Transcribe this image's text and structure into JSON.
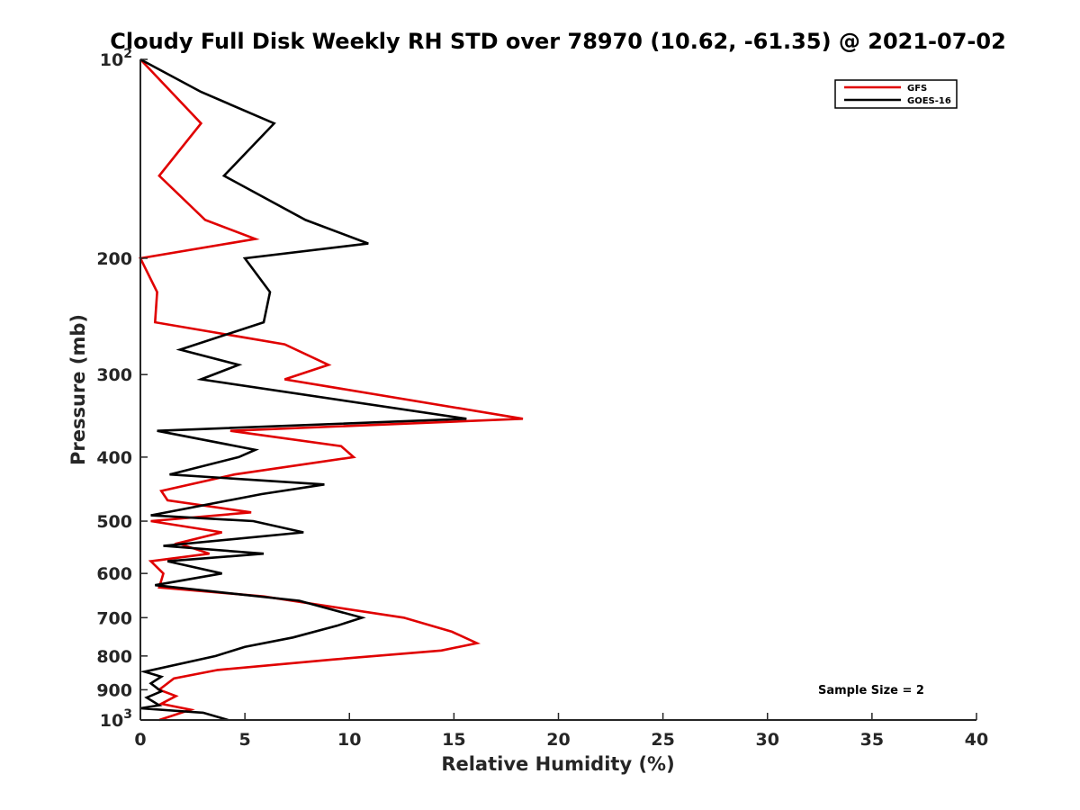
{
  "chart_data": {
    "type": "line",
    "title": "Cloudy Full Disk Weekly RH STD over 78970 (10.62, -61.35) @ 2021-07-02",
    "xlabel": "Relative Humidity (%)",
    "ylabel": "Pressure (mb)",
    "xlim": [
      0,
      40
    ],
    "ylim": [
      1000,
      100
    ],
    "yscale": "log",
    "y_reversed": true,
    "grid": false,
    "legend_position": "top-right",
    "x_ticks": [
      0,
      5,
      10,
      15,
      20,
      25,
      30,
      35,
      40
    ],
    "y_ticks": [
      {
        "value": 100,
        "base": "10",
        "exp": "2"
      },
      {
        "value": 200,
        "label": "200"
      },
      {
        "value": 300,
        "label": "300"
      },
      {
        "value": 400,
        "label": "400"
      },
      {
        "value": 500,
        "label": "500"
      },
      {
        "value": 600,
        "label": "600"
      },
      {
        "value": 700,
        "label": "700"
      },
      {
        "value": 800,
        "label": "800"
      },
      {
        "value": 900,
        "label": "900"
      },
      {
        "value": 1000,
        "base": "10",
        "exp": "3"
      }
    ],
    "series": [
      {
        "name": "GFS",
        "color": "#e00000",
        "points": [
          [
            0.0,
            100
          ],
          [
            2.9,
            125
          ],
          [
            0.9,
            150
          ],
          [
            3.1,
            175
          ],
          [
            5.5,
            187
          ],
          [
            0.0,
            200
          ],
          [
            0.8,
            225
          ],
          [
            0.7,
            250
          ],
          [
            6.9,
            270
          ],
          [
            9.0,
            290
          ],
          [
            6.9,
            305
          ],
          [
            18.3,
            350
          ],
          [
            4.3,
            365
          ],
          [
            9.6,
            385
          ],
          [
            10.2,
            400
          ],
          [
            4.5,
            425
          ],
          [
            1.0,
            450
          ],
          [
            1.3,
            465
          ],
          [
            5.3,
            485
          ],
          [
            0.5,
            500
          ],
          [
            3.9,
            520
          ],
          [
            1.8,
            540
          ],
          [
            3.3,
            560
          ],
          [
            0.5,
            575
          ],
          [
            1.1,
            600
          ],
          [
            0.9,
            630
          ],
          [
            5.9,
            650
          ],
          [
            12.6,
            700
          ],
          [
            14.9,
            735
          ],
          [
            16.1,
            765
          ],
          [
            14.4,
            785
          ],
          [
            9.2,
            810
          ],
          [
            3.7,
            840
          ],
          [
            1.6,
            865
          ],
          [
            0.9,
            900
          ],
          [
            1.7,
            920
          ],
          [
            1.0,
            945
          ],
          [
            2.4,
            965
          ],
          [
            0.9,
            1000
          ]
        ]
      },
      {
        "name": "GOES-16",
        "color": "#000000",
        "points": [
          [
            0.0,
            100
          ],
          [
            2.9,
            112
          ],
          [
            6.4,
            125
          ],
          [
            4.0,
            150
          ],
          [
            7.9,
            175
          ],
          [
            10.9,
            190
          ],
          [
            5.0,
            200
          ],
          [
            6.2,
            225
          ],
          [
            5.9,
            250
          ],
          [
            1.9,
            275
          ],
          [
            4.7,
            290
          ],
          [
            2.9,
            305
          ],
          [
            15.6,
            350
          ],
          [
            0.8,
            365
          ],
          [
            5.5,
            390
          ],
          [
            4.7,
            400
          ],
          [
            1.4,
            425
          ],
          [
            8.8,
            440
          ],
          [
            5.8,
            455
          ],
          [
            0.5,
            490
          ],
          [
            5.4,
            500
          ],
          [
            7.8,
            520
          ],
          [
            1.1,
            545
          ],
          [
            5.9,
            560
          ],
          [
            1.3,
            575
          ],
          [
            3.9,
            600
          ],
          [
            0.7,
            625
          ],
          [
            7.6,
            660
          ],
          [
            10.6,
            700
          ],
          [
            9.4,
            720
          ],
          [
            7.3,
            750
          ],
          [
            5.0,
            775
          ],
          [
            3.6,
            800
          ],
          [
            0.2,
            845
          ],
          [
            1.0,
            860
          ],
          [
            0.5,
            880
          ],
          [
            1.0,
            905
          ],
          [
            0.3,
            925
          ],
          [
            0.9,
            950
          ],
          [
            0.0,
            960
          ],
          [
            3.0,
            975
          ],
          [
            4.2,
            1000
          ]
        ]
      }
    ],
    "annotation": "Sample Size = 2"
  }
}
